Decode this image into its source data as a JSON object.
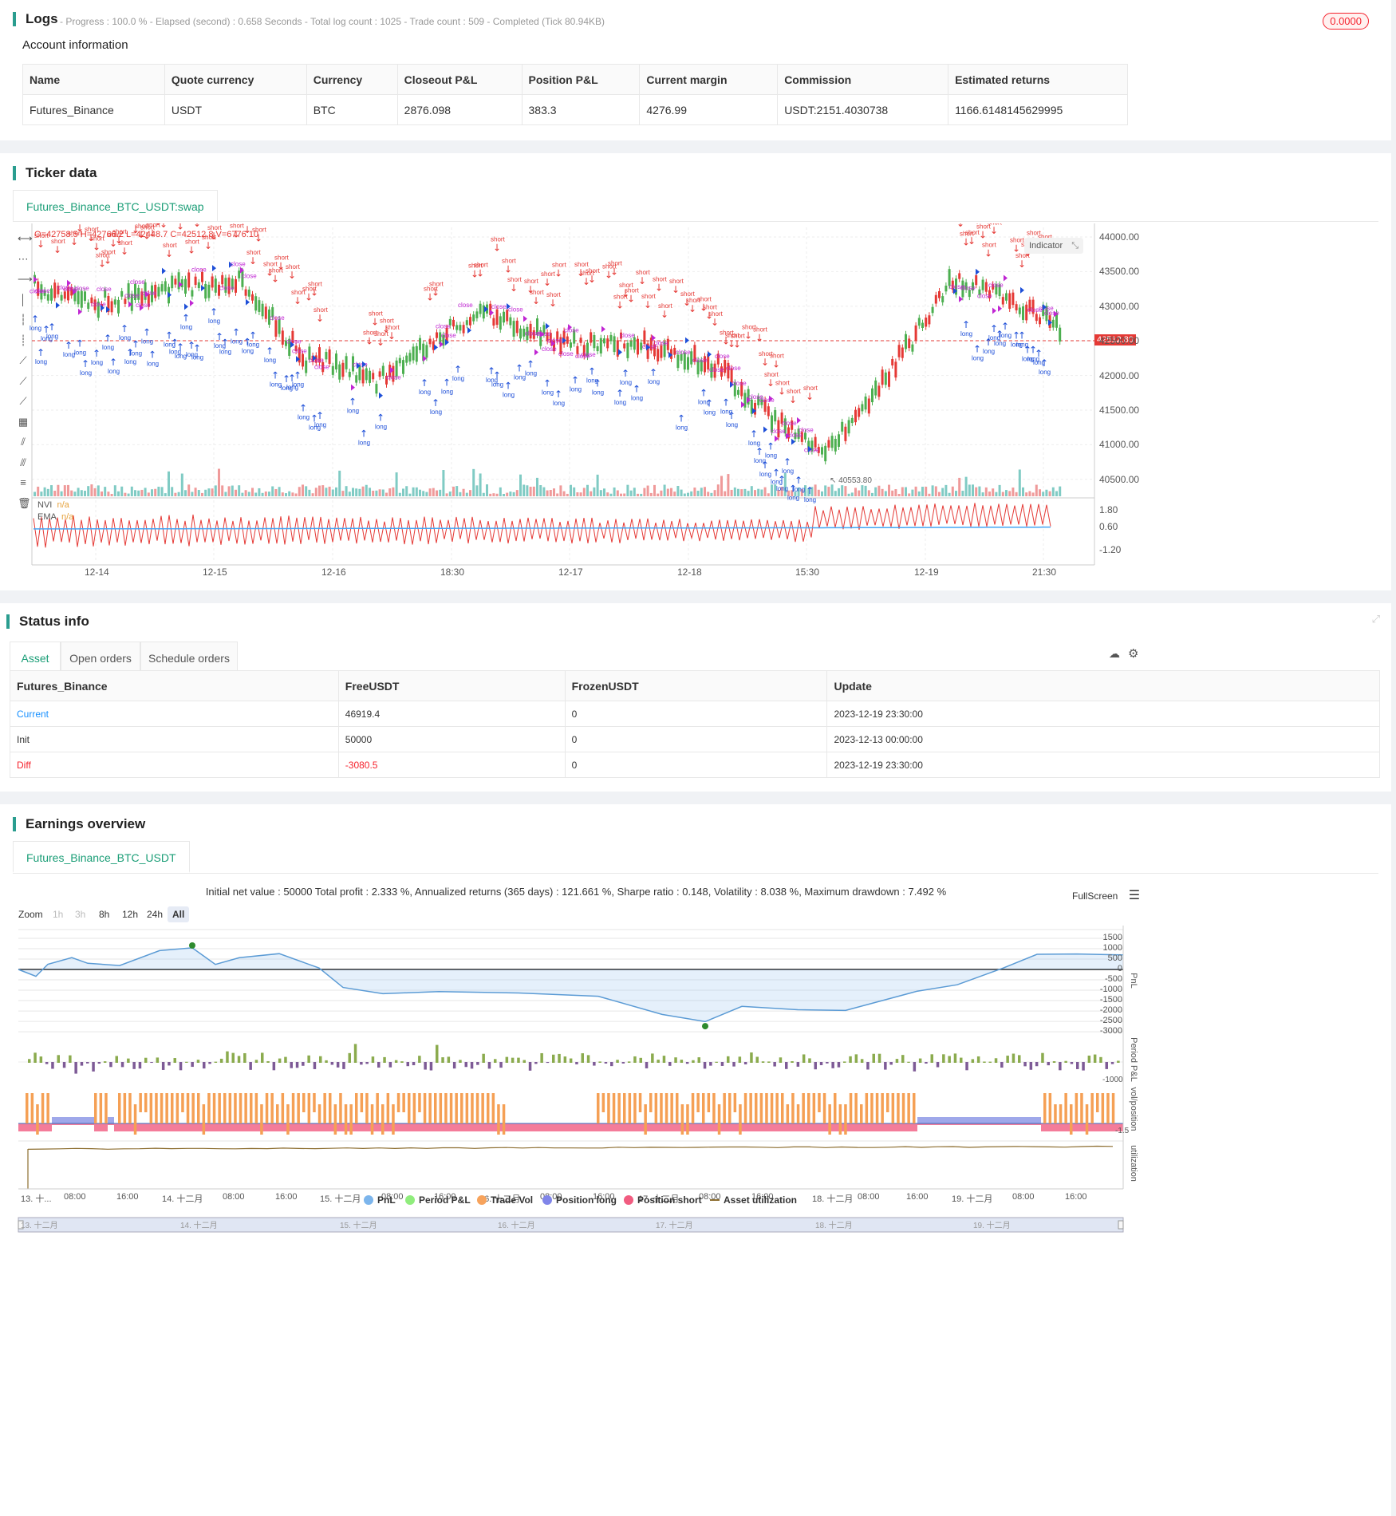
{
  "logs": {
    "title": "Logs",
    "subtitle": "- Progress : 100.0 % - Elapsed (second) : 0.658  Seconds - Total log count : 1025 - Trade count : 509 - Completed (Tick 80.94KB)",
    "badge": "0.0000",
    "account_title": "Account information",
    "headers": [
      "Name",
      "Quote currency",
      "Currency",
      "Closeout P&L",
      "Position P&L",
      "Current margin",
      "Commission",
      "Estimated returns"
    ],
    "row": [
      "Futures_Binance",
      "USDT",
      "BTC",
      "2876.098",
      "383.3",
      "4276.99",
      "USDT:2151.4030738",
      "1166.6148145629995"
    ]
  },
  "ticker": {
    "title": "Ticker data",
    "tab": "Futures_Binance_BTC_USDT:swap",
    "ohlc": "O=42758.5 H=42766.2 L=42448.7 C=42512.8 V=6776.10",
    "indicator_btn": "Indicator",
    "price_ticks": [
      "44000.00",
      "43500.00",
      "43000.00",
      "42500.00",
      "42000.00",
      "41500.00",
      "41000.00",
      "40500.00"
    ],
    "last_price": "42512.80",
    "low_mark": "40553.80",
    "high_mark": "43...",
    "nvi_label": "NVI",
    "nvi_val": "n/a",
    "ema_label": "EMA",
    "ema_val": "n/a",
    "sub_ticks": [
      "1.80",
      "0.60",
      "-1.20"
    ],
    "x_ticks": [
      "12-14",
      "12-15",
      "12-16",
      "18:30",
      "12-17",
      "12-18",
      "15:30",
      "12-19",
      "21:30"
    ]
  },
  "status": {
    "title": "Status info",
    "tabs": [
      "Asset",
      "Open orders",
      "Schedule orders"
    ],
    "headers": [
      "Futures_Binance",
      "FreeUSDT",
      "FrozenUSDT",
      "Update"
    ],
    "rows": [
      [
        "Current",
        "46919.4",
        "0",
        "2023-12-19 23:30:00"
      ],
      [
        "Init",
        "50000",
        "0",
        "2023-12-13 00:00:00"
      ],
      [
        "Diff",
        "-3080.5",
        "0",
        "2023-12-19 23:30:00"
      ]
    ]
  },
  "earnings": {
    "title": "Earnings overview",
    "tab": "Futures_Binance_BTC_USDT",
    "summary": "Initial net value : 50000 Total profit : 2.333 %, Annualized returns (365 days) : 121.661 %, Sharpe ratio : 0.148, Volatility : 8.038 %, Maximum drawdown : 7.492 %",
    "fullscreen": "FullScreen",
    "zoom_label": "Zoom",
    "zoom_buttons": [
      "1h",
      "3h",
      "8h",
      "12h",
      "24h",
      "All"
    ],
    "pnl_ticks": [
      "1500",
      "1000",
      "500",
      "0",
      "-500",
      "-1000",
      "-1500",
      "-2000",
      "-2500",
      "-3000"
    ],
    "pnl_axis": "PnL",
    "period_axis": "Period P&L",
    "period_tick": "-1000",
    "vol_axis": "vol/position",
    "vol_tick": "-1.5",
    "util_axis": "utilization",
    "x_ticks": [
      "13. 十...",
      "08:00",
      "16:00",
      "14. 十二月",
      "08:00",
      "16:00",
      "15. 十二月",
      "08:00",
      "16:00",
      "16. 十二月",
      "08:00",
      "16:00",
      "17. 十二月",
      "08:00",
      "16:00",
      "18. 十二月",
      "08:00",
      "16:00",
      "19. 十二月",
      "08:00",
      "16:00"
    ],
    "nav_ticks": [
      "13. 十二月",
      "14. 十二月",
      "15. 十二月",
      "16. 十二月",
      "17. 十二月",
      "18. 十二月",
      "19. 十二月"
    ],
    "legend": [
      {
        "label": "PnL",
        "color": "#7cb5ec"
      },
      {
        "label": "Period P&L",
        "color": "#90ed7d"
      },
      {
        "label": "Trade Vol",
        "color": "#f7a35c"
      },
      {
        "label": "Position long",
        "color": "#8085e9"
      },
      {
        "label": "Position short",
        "color": "#f15c80"
      },
      {
        "label": "Asset utilization",
        "color": "#8d6e30"
      }
    ]
  },
  "colors": {
    "accent": "#1b9e77",
    "up": "#4caf50",
    "down": "#e53935",
    "long": "#1e4fd8",
    "short": "#e53935",
    "close": "#c026d3"
  }
}
